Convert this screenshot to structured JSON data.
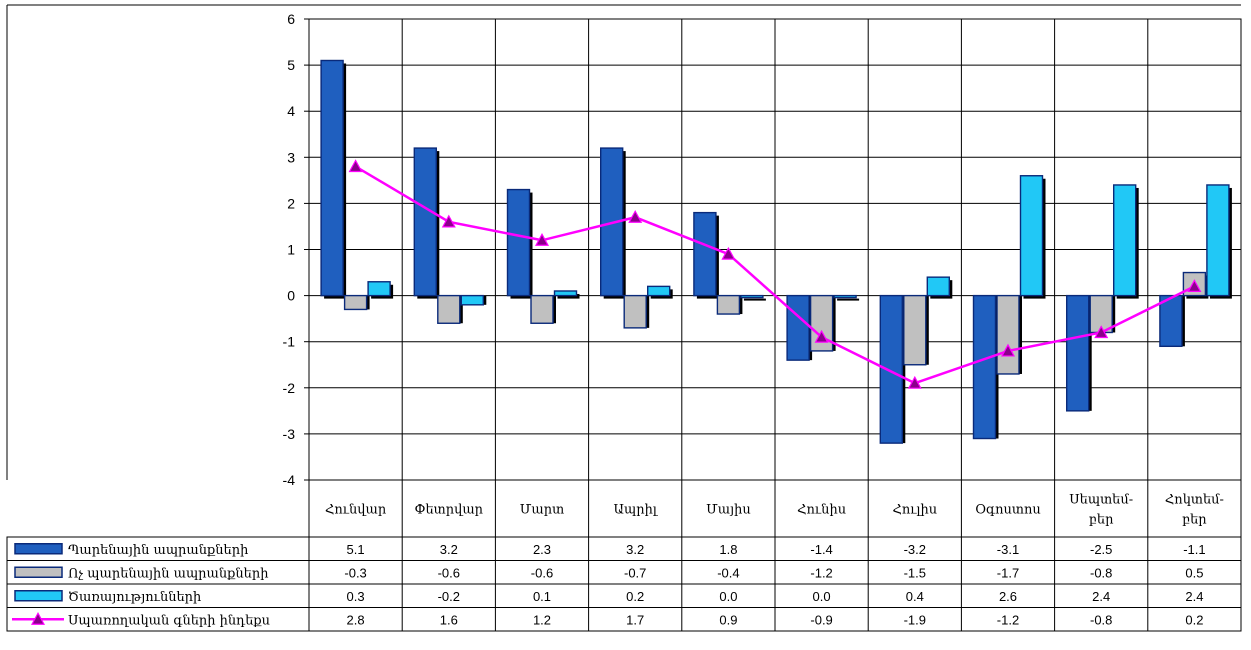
{
  "header_text": "",
  "chart_data": {
    "type": "bar",
    "categories": [
      "Հունվար",
      "Փետրվար",
      "Մարտ",
      "Ապրիլ",
      "Մայիս",
      "Հունիս",
      "Հուլիս",
      "Օգոստոս",
      "Սեպտեմ- բեր",
      "Հոկտեմ- բեր"
    ],
    "category_lines": [
      [
        "Հունվար"
      ],
      [
        "Փետրվար"
      ],
      [
        "Մարտ"
      ],
      [
        "Ապրիլ"
      ],
      [
        "Մայիս"
      ],
      [
        "Հունիս"
      ],
      [
        "Հուլիս"
      ],
      [
        "Օգոստոս"
      ],
      [
        "Սեպտեմ-",
        "բեր"
      ],
      [
        "Հոկտեմ-",
        "բեր"
      ]
    ],
    "ylim": [
      -4,
      6
    ],
    "yticks": [
      6,
      5,
      4,
      3,
      2,
      1,
      0,
      -1,
      -2,
      -3,
      -4
    ],
    "grid": true,
    "legend": "table-below",
    "series": [
      {
        "name": "Պարենային ապրանքների",
        "type": "bar",
        "color": "#1f5fbf",
        "values": [
          5.1,
          3.2,
          2.3,
          3.2,
          1.8,
          -1.4,
          -3.2,
          -3.1,
          -2.5,
          -1.1
        ],
        "labels": [
          "5.1",
          "3.2",
          "2.3",
          "3.2",
          "1.8",
          "-1.4",
          "-3.2",
          "-3.1",
          "-2.5",
          "-1.1"
        ]
      },
      {
        "name": "Ոչ պարենային ապրանքների",
        "type": "bar",
        "color": "#c0c0c0",
        "values": [
          -0.3,
          -0.6,
          -0.6,
          -0.7,
          -0.4,
          -1.2,
          -1.5,
          -1.7,
          -0.8,
          0.5
        ],
        "labels": [
          "-0.3",
          "-0.6",
          "-0.6",
          "-0.7",
          "-0.4",
          "-1.2",
          "-1.5",
          "-1.7",
          "-0.8",
          "0.5"
        ]
      },
      {
        "name": "Ծառայությունների",
        "type": "bar",
        "color": "#21c8f6",
        "values": [
          0.3,
          -0.2,
          0.1,
          0.2,
          0.0,
          0.0,
          0.4,
          2.6,
          2.4,
          2.4
        ],
        "labels": [
          "0.3",
          "-0.2",
          "0.1",
          "0.2",
          "0.0",
          "0.0",
          "0.4",
          "2.6",
          "2.4",
          "2.4"
        ]
      },
      {
        "name": "Սպառողական գների ինդեքս",
        "type": "line",
        "color": "#ff00ff",
        "values": [
          2.8,
          1.6,
          1.2,
          1.7,
          0.9,
          -0.9,
          -1.9,
          -1.2,
          -0.8,
          0.2
        ],
        "labels": [
          "2.8",
          "1.6",
          "1.2",
          "1.7",
          "0.9",
          "-0.9",
          "-1.9",
          "-1.2",
          "-0.8",
          "0.2"
        ]
      }
    ]
  }
}
